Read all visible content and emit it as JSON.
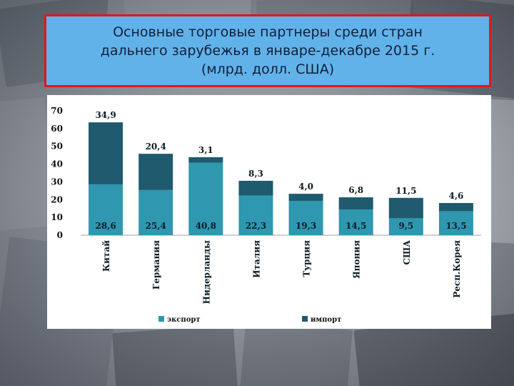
{
  "header": {
    "title": "Основные торговые партнеры среди стран\nдальнего зарубежья в январе-декабре 2015 г.\n(млрд. долл. США)"
  },
  "colors": {
    "export": "#2f97b0",
    "import": "#1f5a6e",
    "title_bg": "#62b2ea",
    "title_border": "#e01818"
  },
  "chart_data": {
    "type": "bar",
    "stacked": true,
    "categories": [
      "Китай",
      "Германия",
      "Нидерланды",
      "Италия",
      "Турция",
      "Япония",
      "США",
      "Респ.Корея"
    ],
    "series": [
      {
        "name": "экспорт",
        "values": [
          28.6,
          25.4,
          40.8,
          22.3,
          19.3,
          14.5,
          9.5,
          13.5
        ]
      },
      {
        "name": "импорт",
        "values": [
          34.9,
          20.4,
          3.1,
          8.3,
          4.0,
          6.8,
          11.5,
          4.6
        ]
      }
    ],
    "export_labels": [
      "28,6",
      "25,4",
      "40,8",
      "22,3",
      "19,3",
      "14,5",
      "9,5",
      "13,5"
    ],
    "import_labels": [
      "34,9",
      "20,4",
      "3,1",
      "8,3",
      "4,0",
      "6,8",
      "11,5",
      "4,6"
    ],
    "yticks": [
      "0",
      "10",
      "20",
      "30",
      "40",
      "50",
      "60",
      "70"
    ],
    "ylim": [
      0,
      70
    ],
    "grid": false,
    "legend_position": "bottom",
    "title": "Основные торговые партнеры среди стран дальнего зарубежья в январе-декабре 2015 г. (млрд. долл. США)"
  }
}
